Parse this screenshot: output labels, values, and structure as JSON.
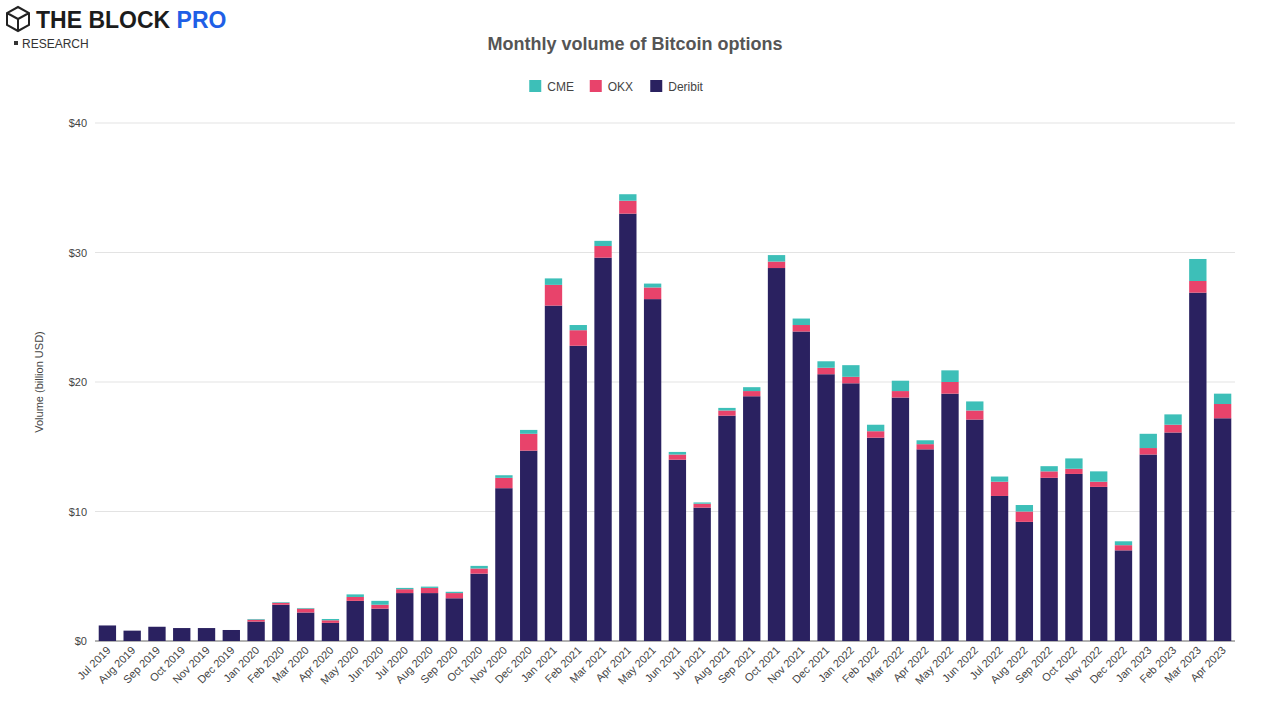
{
  "chart_data": {
    "type": "bar",
    "stacked": true,
    "title": "Monthly volume of Bitcoin options",
    "y_label": "Volume (billion USD)",
    "annotations": [
      "THE BLOCK",
      "PRO",
      "RESEARCH"
    ],
    "categories": [
      "Jul 2019",
      "Aug 2019",
      "Sep 2019",
      "Oct 2019",
      "Nov 2019",
      "Dec 2019",
      "Jan 2020",
      "Feb 2020",
      "Mar 2020",
      "Apr 2020",
      "May 2020",
      "Jun 2020",
      "Jul 2020",
      "Aug 2020",
      "Sep 2020",
      "Oct 2020",
      "Nov 2020",
      "Dec 2020",
      "Jan 2021",
      "Feb 2021",
      "Mar 2021",
      "Apr 2021",
      "May 2021",
      "Jun 2021",
      "Jul 2021",
      "Aug 2021",
      "Sep 2021",
      "Oct 2021",
      "Nov 2021",
      "Dec 2021",
      "Jan 2022",
      "Feb 2022",
      "Mar 2022",
      "Apr 2022",
      "May 2022",
      "Jun 2022",
      "Jul 2022",
      "Aug 2022",
      "Sep 2022",
      "Oct 2022",
      "Nov 2022",
      "Dec 2022",
      "Jan 2023",
      "Feb 2023",
      "Mar 2023",
      "Apr 2023"
    ],
    "series": [
      {
        "name": "CME",
        "color": "#3dbfb8",
        "values": [
          0,
          0,
          0,
          0,
          0,
          0,
          0.05,
          0.05,
          0.05,
          0.1,
          0.2,
          0.3,
          0.1,
          0.1,
          0.1,
          0.2,
          0.2,
          0.3,
          0.5,
          0.4,
          0.4,
          0.5,
          0.3,
          0.2,
          0.1,
          0.2,
          0.3,
          0.5,
          0.5,
          0.5,
          0.9,
          0.5,
          0.8,
          0.3,
          0.9,
          0.7,
          0.4,
          0.5,
          0.4,
          0.8,
          0.8,
          0.3,
          1.1,
          0.8,
          1.7,
          0.8
        ]
      },
      {
        "name": "OKX",
        "color": "#e8436b",
        "values": [
          0,
          0,
          0,
          0,
          0,
          0,
          0.15,
          0.15,
          0.3,
          0.2,
          0.3,
          0.3,
          0.3,
          0.4,
          0.4,
          0.4,
          0.8,
          1.3,
          1.6,
          1.2,
          0.9,
          1.0,
          0.9,
          0.4,
          0.3,
          0.4,
          0.4,
          0.5,
          0.5,
          0.5,
          0.5,
          0.5,
          0.5,
          0.4,
          0.9,
          0.7,
          1.1,
          0.8,
          0.5,
          0.4,
          0.4,
          0.4,
          0.5,
          0.6,
          0.9,
          1.1
        ]
      },
      {
        "name": "Deribit",
        "color": "#2a2160",
        "values": [
          1.2,
          0.8,
          1.1,
          1.0,
          1.0,
          0.85,
          1.5,
          2.8,
          2.2,
          1.4,
          3.1,
          2.5,
          3.7,
          3.7,
          3.3,
          5.2,
          11.8,
          14.7,
          25.9,
          22.8,
          29.6,
          33.0,
          26.4,
          14.0,
          10.3,
          17.4,
          18.9,
          28.8,
          23.9,
          20.6,
          19.9,
          15.7,
          18.8,
          14.8,
          19.1,
          17.1,
          11.2,
          9.2,
          12.6,
          12.9,
          11.9,
          7.0,
          14.4,
          16.1,
          26.9,
          17.2
        ]
      }
    ],
    "ylim": [
      0,
      40
    ],
    "yticks": [
      {
        "value": 0,
        "label": "$0"
      },
      {
        "value": 10,
        "label": "$10"
      },
      {
        "value": 20,
        "label": "$20"
      },
      {
        "value": 30,
        "label": "$30"
      },
      {
        "value": 40,
        "label": "$40"
      }
    ],
    "grid": true,
    "legend": "top"
  }
}
